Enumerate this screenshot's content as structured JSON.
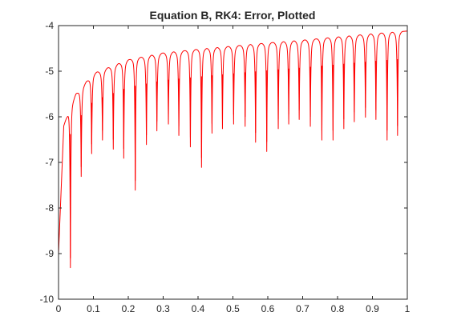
{
  "chart_data": {
    "type": "line",
    "title": "Equation B, RK4: Error, Plotted",
    "xlabel": "",
    "ylabel": "",
    "xlim": [
      0,
      1
    ],
    "ylim": [
      -10,
      -4
    ],
    "x_ticks": [
      "0",
      "0.1",
      "0.2",
      "0.3",
      "0.4",
      "0.5",
      "0.6",
      "0.7",
      "0.8",
      "0.9",
      "1"
    ],
    "y_ticks": [
      "-4",
      "-5",
      "-6",
      "-7",
      "-8",
      "-9",
      "-10"
    ],
    "grid": false,
    "series": [
      {
        "name": "",
        "color": "#ff0000",
        "envelope": {
          "x": [
            0.0,
            0.015,
            0.03,
            0.05,
            0.1,
            0.2,
            0.3,
            0.4,
            0.5,
            0.6,
            0.7,
            0.8,
            0.9,
            1.0
          ],
          "y": [
            -9.0,
            -6.2,
            -5.85,
            -5.5,
            -5.05,
            -4.75,
            -4.6,
            -4.52,
            -4.45,
            -4.38,
            -4.32,
            -4.25,
            -4.18,
            -4.12
          ]
        },
        "dips": {
          "x": [
            0.034,
            0.065,
            0.095,
            0.126,
            0.157,
            0.187,
            0.22,
            0.252,
            0.282,
            0.315,
            0.345,
            0.378,
            0.41,
            0.44,
            0.47,
            0.502,
            0.535,
            0.565,
            0.597,
            0.63,
            0.66,
            0.69,
            0.722,
            0.755,
            0.787,
            0.818,
            0.848,
            0.88,
            0.91,
            0.942,
            0.972
          ],
          "y": [
            -9.1,
            -7.1,
            -6.6,
            -6.3,
            -6.5,
            -6.7,
            -7.4,
            -6.4,
            -6.1,
            -5.95,
            -6.2,
            -6.45,
            -6.9,
            -6.15,
            -6.05,
            -5.95,
            -6.0,
            -6.35,
            -6.55,
            -6.05,
            -5.95,
            -5.85,
            -6.0,
            -6.3,
            -6.3,
            -6.05,
            -5.9,
            -5.8,
            -5.85,
            -6.3,
            -6.2
          ]
        }
      }
    ]
  }
}
